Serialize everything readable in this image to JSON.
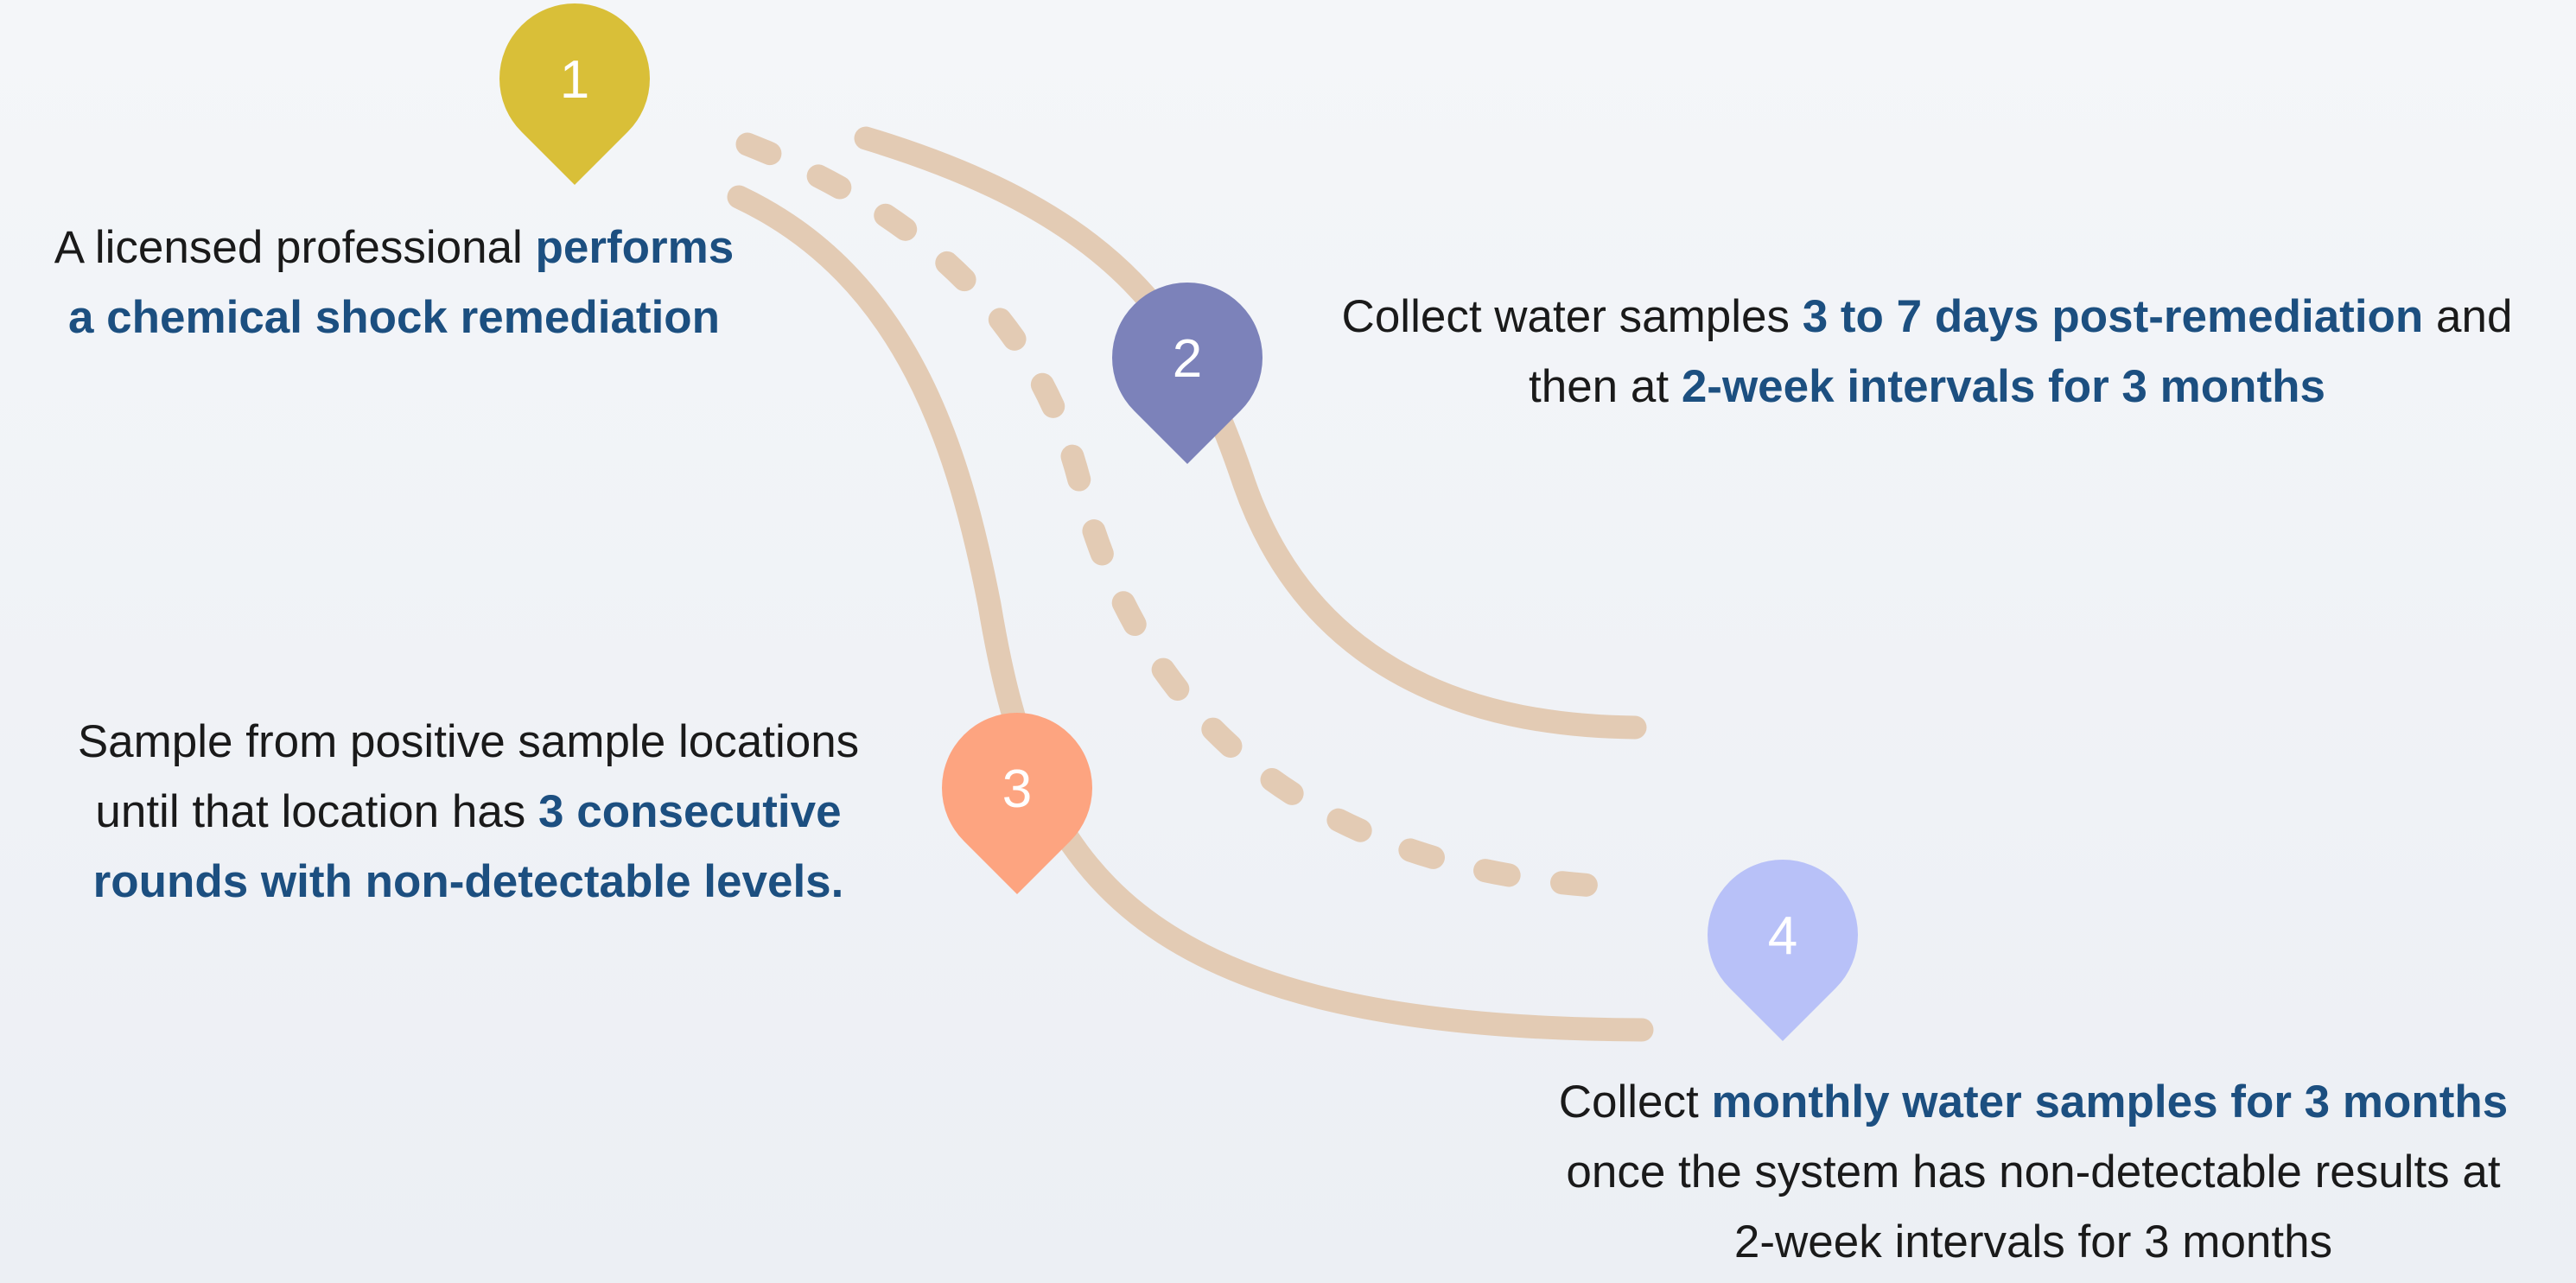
{
  "steps": [
    {
      "number": "1",
      "lines": [
        [
          {
            "text": "A licensed professional ",
            "strong": false
          },
          {
            "text": "performs",
            "strong": true
          }
        ],
        [
          {
            "text": "a chemical shock remediation",
            "strong": true
          }
        ]
      ]
    },
    {
      "number": "2",
      "lines": [
        [
          {
            "text": "Collect water samples ",
            "strong": false
          },
          {
            "text": "3 to 7 days post-remediation",
            "strong": true
          },
          {
            "text": " and",
            "strong": false
          }
        ],
        [
          {
            "text": "then at ",
            "strong": false
          },
          {
            "text": "2-week intervals for 3 months",
            "strong": true
          }
        ]
      ]
    },
    {
      "number": "3",
      "lines": [
        [
          {
            "text": "Sample from positive sample locations",
            "strong": false
          }
        ],
        [
          {
            "text": "until that location has ",
            "strong": false
          },
          {
            "text": "3 consecutive",
            "strong": true
          }
        ],
        [
          {
            "text": "rounds with non-detectable levels.",
            "strong": true
          }
        ]
      ]
    },
    {
      "number": "4",
      "lines": [
        [
          {
            "text": "Collect ",
            "strong": false
          },
          {
            "text": "monthly water samples for 3 months",
            "strong": true
          }
        ],
        [
          {
            "text": "once the system has non-detectable results at",
            "strong": false
          }
        ],
        [
          {
            "text": "2-week intervals for 3 months",
            "strong": false
          }
        ]
      ]
    }
  ]
}
